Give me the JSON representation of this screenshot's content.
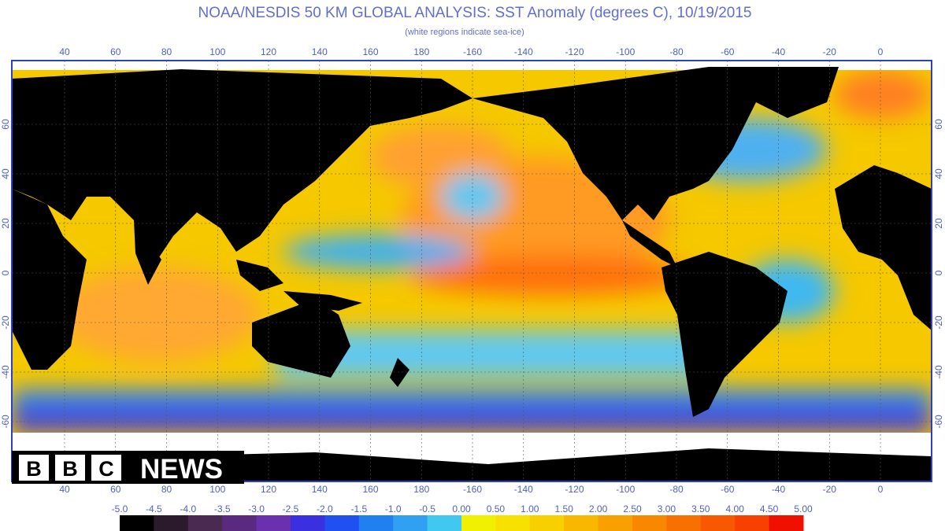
{
  "header": {
    "title": "NOAA/NESDIS 50 KM GLOBAL ANALYSIS: SST Anomaly (degrees C), 10/19/2015",
    "subtitle": "(white regions indicate sea-ice)"
  },
  "map": {
    "longitude_labels": [
      40,
      60,
      80,
      100,
      120,
      140,
      160,
      180,
      -160,
      -140,
      -120,
      -100,
      -80,
      -60,
      -40,
      -20,
      0
    ],
    "latitude_labels": [
      60,
      40,
      20,
      0,
      -20,
      -40,
      -60
    ]
  },
  "colorbar": {
    "labels": [
      "-5.0",
      "-4.5",
      "-4.0",
      "-3.5",
      "-3.0",
      "-2.5",
      "-2.0",
      "-1.5",
      "-1.0",
      "-0.5",
      "0.00",
      "0.50",
      "1.00",
      "1.50",
      "2.00",
      "2.50",
      "3.00",
      "3.50",
      "4.00",
      "4.50",
      "5.00"
    ],
    "colors": [
      "#000000",
      "#2b1a2b",
      "#4a2a50",
      "#5a2a80",
      "#6a30b0",
      "#3a30e0",
      "#2050f0",
      "#2080f0",
      "#30a0f0",
      "#40c8f0",
      "#f0f000",
      "#f8e000",
      "#f8d000",
      "#f8b800",
      "#f8a000",
      "#f88800",
      "#f87000",
      "#f85800",
      "#f84000",
      "#f01000"
    ]
  },
  "logo": {
    "letters": [
      "B",
      "B",
      "C"
    ],
    "word": "NEWS"
  }
}
